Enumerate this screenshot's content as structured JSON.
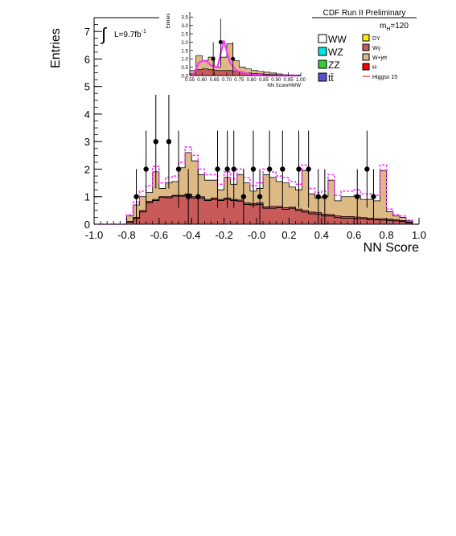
{
  "chart_data": {
    "type": "histogram",
    "title": "CDF Run II Preliminary",
    "xlabel": "NN Score",
    "ylabel": "Entries",
    "xlim": [
      -1.0,
      1.0
    ],
    "ylim": [
      0,
      7.5
    ],
    "x_ticks": [
      "-1.0",
      "-0.8",
      "-0.6",
      "-0.4",
      "-0.2",
      "-0.0",
      "0.2",
      "0.4",
      "0.6",
      "0.8",
      "1.0"
    ],
    "y_ticks": [
      "0",
      "1",
      "2",
      "3",
      "4",
      "5",
      "6",
      "7"
    ],
    "luminosity": "L=9.7fb",
    "luminosity_exp": "-1",
    "mass_label": "m",
    "mass_sub": "H",
    "mass_value": "=120",
    "bin_edges_start": -1.0,
    "bin_width": 0.04,
    "stack_cumulative": {
      "WW": [
        0,
        0,
        0,
        0,
        0,
        0.08,
        0.2,
        0.45,
        0.78,
        0.86,
        0.98,
        0.96,
        1.02,
        1.02,
        1.06,
        0.95,
        0.95,
        0.86,
        0.9,
        0.86,
        0.9,
        0.86,
        0.84,
        0.72,
        0.7,
        0.72,
        0.58,
        0.58,
        0.6,
        0.54,
        0.58,
        0.5,
        0.44,
        0.38,
        0.36,
        0.3,
        0.3,
        0.24,
        0.22,
        0.22,
        0.2,
        0.2,
        0.16,
        0.16,
        0.15,
        0.14,
        0.12,
        0.1,
        0.05,
        0
      ],
      "WW_to_Wgamma": [
        0,
        0,
        0,
        0,
        0,
        0.1,
        0.25,
        0.5,
        0.83,
        0.9,
        1.0,
        1.0,
        1.05,
        1.05,
        1.1,
        1.0,
        1.0,
        0.9,
        0.95,
        0.9,
        0.95,
        0.9,
        0.88,
        0.78,
        0.75,
        0.78,
        0.63,
        0.65,
        0.65,
        0.6,
        0.62,
        0.55,
        0.5,
        0.44,
        0.42,
        0.36,
        0.35,
        0.3,
        0.28,
        0.28,
        0.26,
        0.24,
        0.22,
        0.2,
        0.2,
        0.18,
        0.16,
        0.13,
        0.08,
        0
      ],
      "Wjet_top": [
        0,
        0,
        0,
        0,
        0,
        0.3,
        0.7,
        1.0,
        1.15,
        1.9,
        1.3,
        1.5,
        1.55,
        2.05,
        2.6,
        2.3,
        1.8,
        1.6,
        1.6,
        1.25,
        1.7,
        1.45,
        1.8,
        1.5,
        1.2,
        1.3,
        1.8,
        1.7,
        1.55,
        1.5,
        1.35,
        1.25,
        1.95,
        1.1,
        0.95,
        1.0,
        1.6,
        0.85,
        1.0,
        1.0,
        1.05,
        0.9,
        0.9,
        0.85,
        1.95,
        0.45,
        0.3,
        0.25,
        0.12,
        0
      ]
    },
    "signal_x5": [
      0,
      0,
      0,
      0,
      0,
      0.35,
      0.8,
      1.2,
      1.4,
      2.1,
      1.5,
      1.7,
      1.75,
      2.25,
      2.8,
      2.5,
      2.0,
      1.8,
      1.8,
      1.45,
      1.9,
      1.65,
      2.0,
      1.7,
      1.4,
      1.5,
      2.0,
      1.9,
      1.75,
      1.7,
      1.55,
      1.45,
      2.15,
      1.3,
      1.15,
      1.2,
      1.8,
      1.05,
      1.2,
      1.2,
      1.25,
      1.1,
      1.1,
      1.05,
      2.15,
      0.55,
      0.35,
      0.3,
      0.15,
      0
    ],
    "observed": [
      {
        "x": -0.74,
        "y": 1,
        "err": 1.0
      },
      {
        "x": -0.68,
        "y": 2,
        "err": 1.4
      },
      {
        "x": -0.62,
        "y": 3,
        "err": 1.7
      },
      {
        "x": -0.54,
        "y": 3,
        "err": 1.7
      },
      {
        "x": -0.48,
        "y": 2,
        "err": 1.4
      },
      {
        "x": -0.42,
        "y": 1,
        "err": 1.0
      },
      {
        "x": -0.36,
        "y": 1,
        "err": 1.0
      },
      {
        "x": -0.24,
        "y": 2,
        "err": 1.4
      },
      {
        "x": -0.18,
        "y": 2,
        "err": 1.4
      },
      {
        "x": -0.14,
        "y": 2,
        "err": 1.4
      },
      {
        "x": -0.08,
        "y": 1,
        "err": 1.0
      },
      {
        "x": -0.02,
        "y": 2,
        "err": 1.4
      },
      {
        "x": 0.02,
        "y": 1,
        "err": 1.0
      },
      {
        "x": 0.08,
        "y": 2,
        "err": 1.4
      },
      {
        "x": 0.16,
        "y": 2,
        "err": 1.4
      },
      {
        "x": 0.26,
        "y": 2,
        "err": 1.4
      },
      {
        "x": 0.32,
        "y": 2,
        "err": 1.4
      },
      {
        "x": 0.38,
        "y": 1,
        "err": 1.0
      },
      {
        "x": 0.42,
        "y": 1,
        "err": 1.0
      },
      {
        "x": 0.62,
        "y": 1,
        "err": 1.0
      },
      {
        "x": 0.68,
        "y": 2,
        "err": 1.4
      },
      {
        "x": 0.72,
        "y": 1,
        "err": 1.0
      }
    ],
    "legend": [
      {
        "label": "WW",
        "color": "#ffffff"
      },
      {
        "label": "WZ",
        "color": "#00e5e5"
      },
      {
        "label": "ZZ",
        "color": "#33cc33"
      },
      {
        "label": "tt̄",
        "color": "#5a4fcf"
      },
      {
        "label": "DY",
        "color": "#ffee00"
      },
      {
        "label": "Wγ",
        "color": "#c85a5a"
      },
      {
        "label": "W+jet",
        "color": "#ddb985"
      },
      {
        "label": "H",
        "color": "#ff0000"
      },
      {
        "label": "Higgsx 15",
        "color": "#ff0000"
      }
    ],
    "colors": {
      "ww": "#ffffff",
      "wgamma": "#c85a5a",
      "wjet": "#ddb985",
      "signal": "#ff33ff",
      "data": "#000000"
    },
    "inset": {
      "xlabel": "NN ScoreHWW",
      "ylabel": "Entries",
      "xlim": [
        0.55,
        1.0
      ],
      "ylim": [
        0,
        3.8
      ],
      "x_ticks": [
        "0.55",
        "0.60",
        "0.65",
        "0.70",
        "0.75",
        "0.80",
        "0.85",
        "0.90",
        "0.95",
        "1.00"
      ],
      "y_ticks": [
        "0.0",
        "0.5",
        "1.0",
        "1.5",
        "2.0",
        "2.5",
        "3.0",
        "3.5"
      ],
      "wjet_top": [
        0.3,
        1.2,
        0.9,
        1.1,
        0.5,
        1.1,
        1.9,
        0.9,
        0.5,
        0.4,
        0.3,
        0.25,
        0.2,
        0.15,
        0.1,
        0.05,
        0.04,
        0.03
      ],
      "wgamma_top": [
        0.1,
        0.35,
        0.4,
        0.35,
        0.3,
        0.3,
        0.3,
        0.25,
        0.2,
        0.15,
        0.12,
        0.1,
        0.08,
        0.06,
        0.04,
        0.03,
        0.02,
        0.01
      ],
      "signal": [
        0.0,
        0.8,
        0.9,
        0.6,
        0.5,
        2.1,
        0.8,
        0.3,
        0.2,
        0.1,
        0.05,
        0.03,
        0,
        0,
        0,
        0,
        0,
        0
      ],
      "observed": [
        {
          "x": 0.645,
          "y": 1,
          "err": 1.0
        },
        {
          "x": 0.675,
          "y": 2,
          "err": 1.4
        },
        {
          "x": 0.725,
          "y": 1,
          "err": 1.0
        }
      ]
    }
  }
}
